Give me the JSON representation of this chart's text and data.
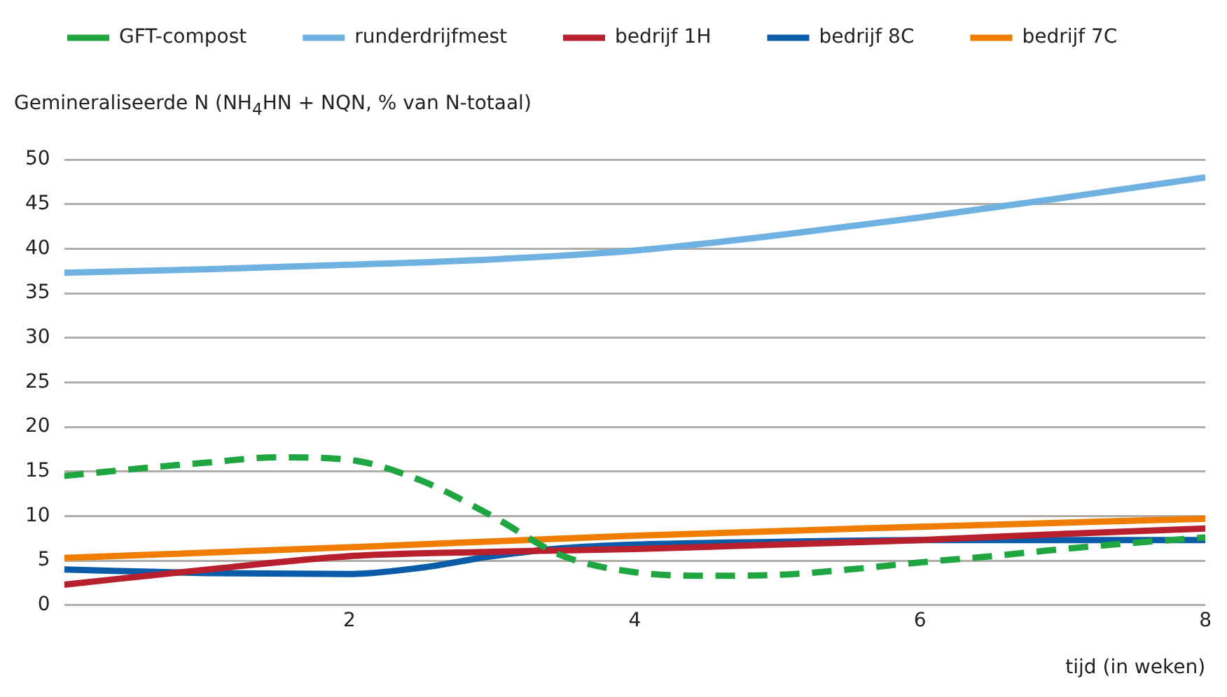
{
  "chart_data": {
    "type": "line",
    "ylabel": "Gemineraliseerde N (NH$_{4}$HN + NQN, % van N-totaal)",
    "xlabel": "tijd (in weken)",
    "xlim": [
      0,
      8
    ],
    "xticks": [
      2,
      4,
      6,
      8
    ],
    "ylim": [
      0,
      50
    ],
    "yticks": [
      0,
      5,
      10,
      15,
      20,
      25,
      30,
      35,
      40,
      45,
      50
    ],
    "grid": "y",
    "legend": "top left",
    "marker": "none",
    "series": [
      {
        "name": "GFT-compost",
        "color": "#1fa640",
        "line_style": "dashed",
        "x": [
          0,
          0.5,
          1,
          1.5,
          2,
          2.5,
          3,
          3.5,
          4,
          4.5,
          5,
          5.5,
          6,
          6.5,
          7,
          7.5,
          8
        ],
        "values": [
          14.5,
          15.3,
          16.0,
          16.6,
          16.3,
          14.0,
          10.0,
          5.5,
          3.7,
          3.3,
          3.4,
          4.0,
          4.8,
          5.5,
          6.3,
          7.0,
          7.6
        ]
      },
      {
        "name": "runderdrijfmest",
        "color": "#6fb1e0",
        "line_style": "solid",
        "x": [
          0,
          1,
          2,
          3,
          4,
          5,
          6,
          7,
          8
        ],
        "values": [
          37.3,
          37.7,
          38.2,
          38.8,
          39.8,
          41.5,
          43.5,
          45.7,
          48.0
        ]
      },
      {
        "name": "bedrijf 1H",
        "color": "#b8202e",
        "line_style": "solid",
        "x": [
          0,
          1,
          2,
          3,
          4,
          5,
          6,
          7,
          8
        ],
        "values": [
          2.3,
          4.0,
          5.5,
          6.0,
          6.3,
          6.8,
          7.3,
          8.0,
          8.6
        ]
      },
      {
        "name": "bedrijf 8C",
        "color": "#0a5ba8",
        "line_style": "solid",
        "x": [
          0,
          1,
          2,
          2.5,
          3,
          3.5,
          4,
          5,
          6,
          7,
          8
        ],
        "values": [
          4.0,
          3.6,
          3.5,
          4.2,
          5.5,
          6.4,
          6.8,
          7.1,
          7.3,
          7.3,
          7.3
        ]
      },
      {
        "name": "bedrijf 7C",
        "color": "#f07d00",
        "line_style": "solid",
        "x": [
          0,
          2,
          4,
          6,
          8
        ],
        "values": [
          5.3,
          6.5,
          7.8,
          8.8,
          9.7
        ]
      }
    ]
  }
}
